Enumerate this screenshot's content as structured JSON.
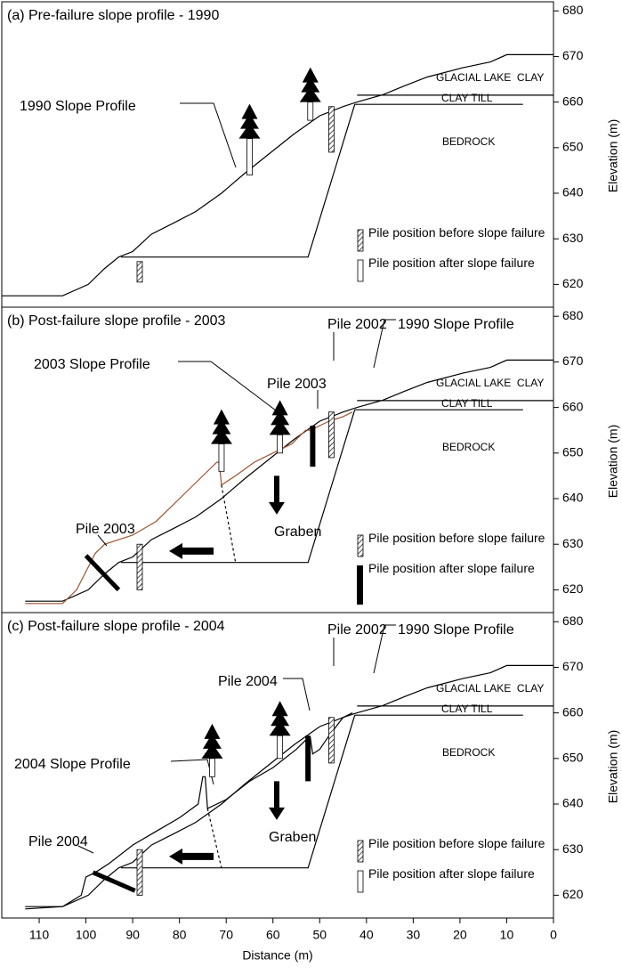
{
  "chart_data": [
    {
      "type": "line",
      "title": "(a) Pre-failure slope profile - 1990",
      "y_label": "Elevation (m)",
      "xlim": [
        118,
        0
      ],
      "ylim": [
        615,
        682
      ],
      "yticks": [
        620,
        630,
        640,
        650,
        660,
        670,
        680
      ],
      "layers": [
        "GLACIAL LAKE  CLAY",
        "CLAY TILL",
        "BEDROCK"
      ],
      "legend": [
        "Pile position before slope failure",
        "Pile position after slope failure"
      ],
      "annotations": [
        "1990 Slope Profile"
      ],
      "series": [
        {
          "color": "#000000",
          "x": [
            118,
            105,
            99.5,
            96,
            93,
            90,
            86,
            81,
            76.5,
            71,
            66,
            61,
            55.5,
            50,
            45,
            42,
            36.5,
            32,
            27,
            19.5,
            13.5,
            10,
            0
          ],
          "values": [
            617.5,
            617.5,
            620,
            623.5,
            626,
            627.2,
            631,
            633.6,
            636,
            640,
            644.4,
            648.5,
            653,
            657,
            659,
            660,
            661.6,
            663.5,
            665.5,
            667.5,
            668.8,
            670.4,
            670.4
          ]
        },
        {
          "color": "#000000",
          "x": [
            42,
            0
          ],
          "values": [
            661.5,
            661.5
          ]
        },
        {
          "color": "#000000",
          "x": [
            42.5,
            6.5
          ],
          "values": [
            659.5,
            659.5
          ]
        },
        {
          "color": "#000000",
          "x": [
            42.5,
            52.5,
            92.5
          ],
          "values": [
            659.5,
            626,
            626
          ]
        }
      ]
    },
    {
      "type": "line",
      "title": "(b) Post-failure slope profile - 2003",
      "y_label": "Elevation (m)",
      "xlim": [
        118,
        0
      ],
      "ylim": [
        615,
        682
      ],
      "yticks": [
        620,
        630,
        640,
        650,
        660,
        670,
        680
      ],
      "layers": [
        "GLACIAL LAKE  CLAY",
        "CLAY TILL",
        "BEDROCK"
      ],
      "legend": [
        "Pile position before slope failure",
        "Pile position after slope failure"
      ],
      "annotations": [
        "Pile 2002",
        "1990 Slope Profile",
        "2003 Slope Profile",
        "Pile 2003",
        "Pile 2003",
        "Graben"
      ],
      "series": [
        {
          "color": "#000000",
          "x": [
            113,
            105,
            99.5,
            96,
            93,
            90,
            86,
            81,
            76.5,
            71,
            66,
            61,
            55.5,
            50,
            45,
            42,
            36.5,
            32,
            27,
            19.5,
            13.5,
            10,
            0
          ],
          "values": [
            617.5,
            617.5,
            620,
            623.5,
            626,
            627.2,
            631,
            633.6,
            636,
            640,
            644.4,
            648.5,
            653,
            657,
            659,
            660,
            661.6,
            663.5,
            665.5,
            667.5,
            668.8,
            670.4,
            670.4
          ]
        },
        {
          "color": "#000000",
          "x": [
            42,
            0
          ],
          "values": [
            661.5,
            661.5
          ]
        },
        {
          "color": "#000000",
          "x": [
            42.5,
            6.5
          ],
          "values": [
            659.5,
            659.5
          ]
        },
        {
          "color": "#000000",
          "x": [
            42.5,
            52.5,
            92.5
          ],
          "values": [
            659.5,
            626,
            626
          ]
        },
        {
          "color": "#a0522d",
          "x": [
            113,
            105,
            102,
            100,
            98,
            96,
            90,
            85,
            80,
            76,
            72,
            71.5,
            71,
            68,
            64,
            60,
            56,
            53,
            52,
            48,
            45,
            43
          ],
          "values": [
            617,
            617,
            620,
            624,
            628,
            630,
            632,
            635,
            640,
            644,
            648,
            648,
            643,
            645,
            648,
            650,
            652,
            655,
            655,
            657,
            658,
            659
          ]
        },
        {
          "color": "#000000",
          "dash": true,
          "x": [
            71,
            68
          ],
          "values": [
            643,
            626
          ]
        }
      ]
    },
    {
      "type": "line",
      "title": "(c) Post-failure slope profile - 2004",
      "y_label": "Elevation (m)",
      "x_label": "Distance (m)",
      "xlim": [
        118,
        0
      ],
      "ylim": [
        615,
        682
      ],
      "yticks": [
        620,
        630,
        640,
        650,
        660,
        670,
        680
      ],
      "xticks": [
        110,
        100,
        90,
        80,
        70,
        60,
        50,
        40,
        30,
        20,
        10,
        0
      ],
      "layers": [
        "GLACIAL LAKE  CLAY",
        "CLAY TILL",
        "BEDROCK"
      ],
      "legend": [
        "Pile position before slope failure",
        "Pile position after slope failure"
      ],
      "annotations": [
        "Pile 2002",
        "1990 Slope Profile",
        "Pile 2004",
        "2004 Slope Profile",
        "Pile 2004",
        "Graben"
      ],
      "series": [
        {
          "color": "#000000",
          "x": [
            113,
            105,
            99.5,
            96,
            93,
            90,
            86,
            81,
            76.5,
            71,
            66,
            61,
            55.5,
            50,
            45,
            42,
            36.5,
            32,
            27,
            19.5,
            13.5,
            10,
            0
          ],
          "values": [
            617.5,
            617.5,
            620,
            623.5,
            626,
            627.2,
            631,
            633.6,
            636,
            640,
            644.4,
            648.5,
            653,
            657,
            659,
            660,
            661.6,
            663.5,
            665.5,
            667.5,
            668.8,
            670.4,
            670.4
          ]
        },
        {
          "color": "#000000",
          "x": [
            42,
            0
          ],
          "values": [
            661.5,
            661.5
          ]
        },
        {
          "color": "#000000",
          "x": [
            42.5,
            6.5
          ],
          "values": [
            659.5,
            659.5
          ]
        },
        {
          "color": "#000000",
          "x": [
            42.5,
            52.5,
            92.5
          ],
          "values": [
            659.5,
            626,
            626
          ]
        },
        {
          "color": "#000000",
          "x": [
            113,
            105,
            101,
            100,
            98,
            95,
            90,
            85,
            80,
            76,
            75,
            74.5,
            74,
            70,
            65,
            60,
            55,
            53,
            52,
            51.5,
            50,
            48,
            45,
            43
          ],
          "values": [
            617,
            617.5,
            620,
            624,
            625,
            627,
            631,
            634,
            637,
            640,
            646,
            646,
            639,
            641,
            645,
            648,
            652,
            654,
            654.5,
            651,
            652,
            655,
            659,
            660
          ]
        },
        {
          "color": "#000000",
          "dash": true,
          "x": [
            74,
            71
          ],
          "values": [
            639,
            626
          ]
        }
      ]
    }
  ]
}
